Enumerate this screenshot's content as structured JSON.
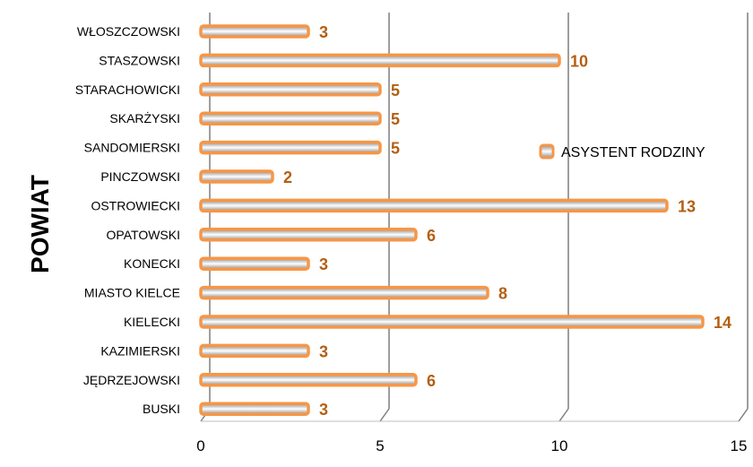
{
  "chart_data": {
    "type": "bar",
    "orientation": "horizontal",
    "style": "3d",
    "categories": [
      "WŁOSZCZOWSKI",
      "STASZOWSKI",
      "STARACHOWICKI",
      "SKARŻYSKI",
      "SANDOMIERSKI",
      "PINCZOWSKI",
      "OSTROWIECKI",
      "OPATOWSKI",
      "KONECKI",
      "MIASTO KIELCE",
      "KIELECKI",
      "KAZIMIERSKI",
      "JĘDRZEJOWSKI",
      "BUSKI"
    ],
    "series": [
      {
        "name": "ASYSTENT RODZINY",
        "values": [
          3,
          10,
          5,
          5,
          5,
          2,
          13,
          6,
          3,
          8,
          14,
          3,
          6,
          3
        ]
      }
    ],
    "ylabel": "POWIAT",
    "xlim": [
      0,
      15
    ],
    "xticks": [
      0,
      5,
      10,
      15
    ],
    "grid": true,
    "legend_position": "right",
    "colors": {
      "bar_border": "#f79646",
      "bar_fill_dark": "#8c8c8c",
      "bar_fill_light": "#ffffff",
      "data_label": "#b35f12",
      "gridline": "#7f7f7f"
    }
  }
}
